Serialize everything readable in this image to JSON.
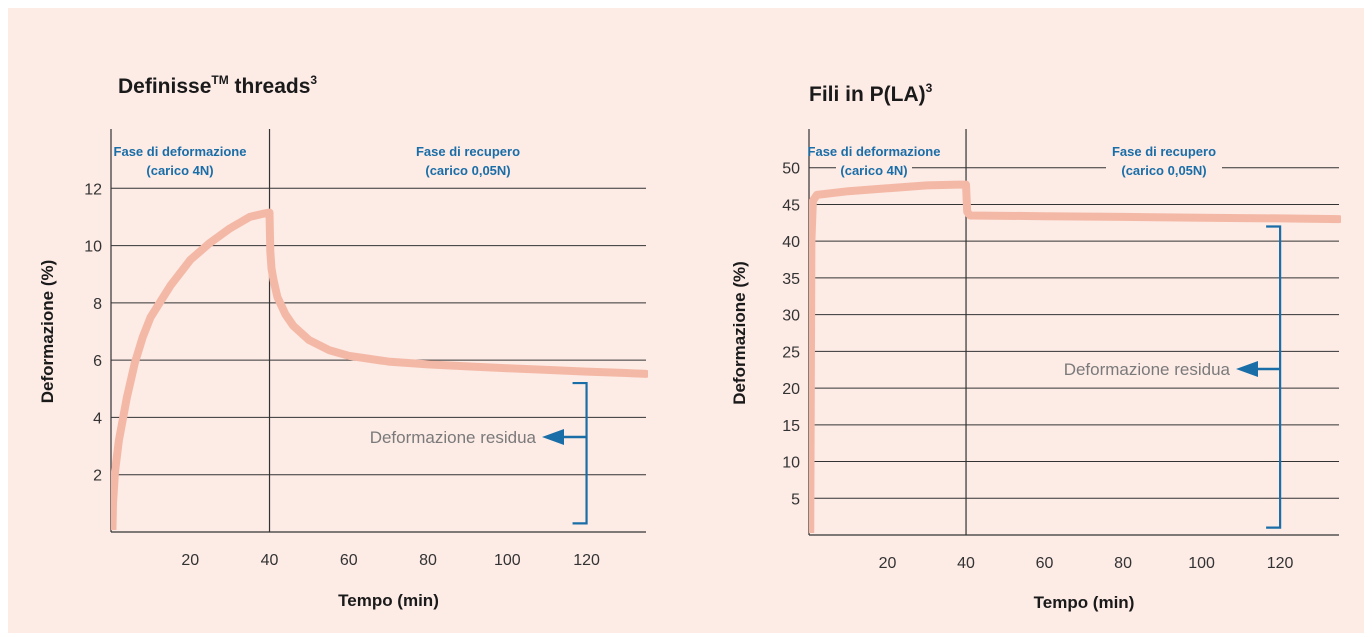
{
  "colors": {
    "background": "#fdebe6",
    "curve": "#f4b9a6",
    "accent": "#1a6ea8",
    "grid": "#333333"
  },
  "chart_data": [
    {
      "type": "line",
      "title": "Definisse",
      "title_sup_tm": "TM",
      "title_rest": " threads",
      "title_sup_ref": "3",
      "xlabel": "Tempo (min)",
      "ylabel": "Deformazione (%)",
      "xlim": [
        0,
        135
      ],
      "ylim": [
        0,
        14
      ],
      "x_ticks": [
        20,
        40,
        60,
        80,
        100,
        120
      ],
      "x_tick_labels": [
        "20",
        "40",
        "60",
        "80",
        "100",
        "120"
      ],
      "y_ticks": [
        2,
        4,
        6,
        8,
        10,
        12
      ],
      "y_tick_labels": [
        "2",
        "4",
        "6",
        "8",
        "10",
        "12"
      ],
      "grid": true,
      "phase_divider_x": 40,
      "phases": [
        {
          "line1": "Fase  di deformazione",
          "line2": "(carico 4N)"
        },
        {
          "line1": "Fase di recupero",
          "line2": "(carico 0,05N)"
        }
      ],
      "annotation": "Deformazione residua",
      "bracket_y": [
        0.3,
        5.2
      ],
      "bracket_x": 120,
      "series": [
        {
          "x": [
            0.2,
            0.5,
            1,
            2,
            4,
            6,
            8,
            10,
            15,
            20,
            25,
            30,
            35,
            38,
            40,
            40.2,
            40.5,
            41,
            42,
            44,
            46,
            50,
            55,
            60,
            70,
            80,
            90,
            100,
            110,
            120,
            130,
            135
          ],
          "y": [
            -1,
            1,
            2.1,
            3.2,
            4.7,
            5.9,
            6.8,
            7.5,
            8.6,
            9.5,
            10.1,
            10.6,
            11.0,
            11.1,
            11.15,
            9.8,
            9.2,
            8.8,
            8.2,
            7.6,
            7.2,
            6.7,
            6.35,
            6.15,
            5.95,
            5.85,
            5.78,
            5.72,
            5.66,
            5.6,
            5.55,
            5.52
          ]
        }
      ]
    },
    {
      "type": "line",
      "title": "Fili in P(LA)",
      "title_sup_ref": "3",
      "xlabel": "Tempo (min)",
      "ylabel": "Deformazione (%)",
      "xlim": [
        0,
        135
      ],
      "ylim": [
        0,
        55
      ],
      "x_ticks": [
        20,
        40,
        60,
        80,
        100,
        120
      ],
      "x_tick_labels": [
        "20",
        "40",
        "60",
        "80",
        "100",
        "120"
      ],
      "y_ticks": [
        5,
        10,
        15,
        20,
        25,
        30,
        35,
        40,
        45,
        50
      ],
      "y_tick_labels": [
        "5",
        "10",
        "15",
        "20",
        "25",
        "30",
        "35",
        "40",
        "45",
        "50"
      ],
      "grid": true,
      "phase_divider_x": 40,
      "phases": [
        {
          "line1": "Fase  di deformazione",
          "line2": "(carico 4N)"
        },
        {
          "line1": "Fase di recupero",
          "line2": "(carico 0,05N)"
        }
      ],
      "annotation": "Deformazione residua",
      "bracket_y": [
        1,
        42
      ],
      "bracket_x": 120,
      "series": [
        {
          "x": [
            0.3,
            0.6,
            1,
            2,
            10,
            20,
            30,
            38,
            40,
            40.3,
            41,
            60,
            80,
            100,
            120,
            135
          ],
          "y": [
            -1,
            40,
            45.5,
            46.3,
            46.8,
            47.2,
            47.6,
            47.7,
            47.7,
            44.0,
            43.5,
            43.4,
            43.3,
            43.2,
            43.1,
            43.0
          ]
        }
      ]
    }
  ]
}
